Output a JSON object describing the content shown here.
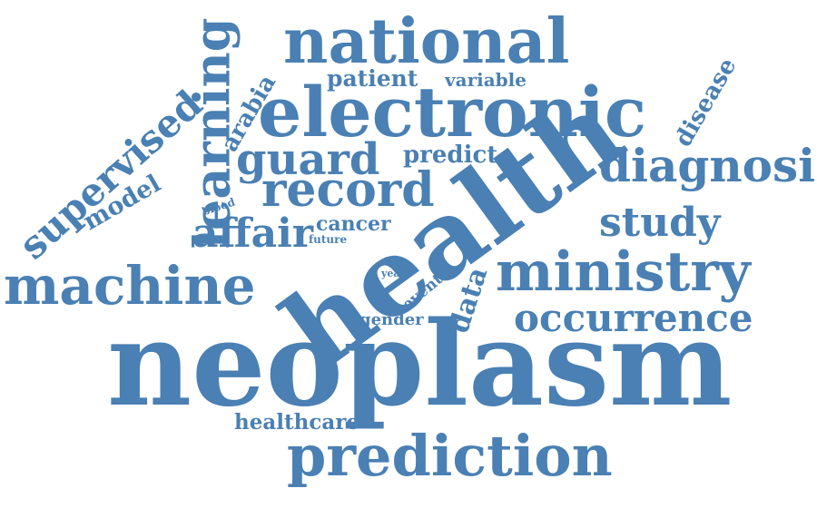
{
  "style": {
    "word_color": "#4a80b3",
    "background": "#ffffff"
  },
  "words": {
    "neoplasm": "neoplasm",
    "health": "health",
    "electronic": "electronic",
    "national": "national",
    "ministry": "ministry",
    "prediction": "prediction",
    "machine": "machine",
    "learning": "learning",
    "record": "record",
    "diagnosis": "diagnosis",
    "guard": "guard",
    "occurrence": "occurrence",
    "study": "study",
    "supervised": "supervised",
    "affair": "affair",
    "healthcare": "healthcare",
    "arabia": "arabia",
    "model": "model",
    "disease": "disease",
    "patient": "patient",
    "variable": "variable",
    "predict": "predict",
    "cancer": "cancer",
    "data": "data",
    "event": "event",
    "gender": "gender",
    "blood": "blood",
    "future": "future",
    "year": "year"
  }
}
